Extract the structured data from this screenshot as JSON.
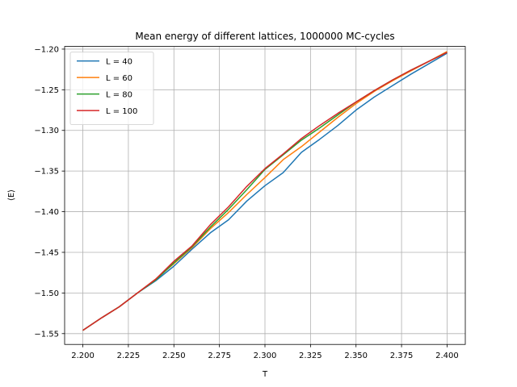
{
  "chart_data": {
    "type": "line",
    "title": "Mean energy of different lattices, 1000000 MC-cycles",
    "xlabel": "T",
    "ylabel": "⟨E⟩",
    "xlim": [
      2.19,
      2.41
    ],
    "ylim": [
      -1.5633,
      -1.1967
    ],
    "grid": true,
    "legend_position": "top-left",
    "xticks": [
      2.2,
      2.225,
      2.25,
      2.275,
      2.3,
      2.325,
      2.35,
      2.375,
      2.4
    ],
    "xtick_labels": [
      "2.200",
      "2.225",
      "2.250",
      "2.275",
      "2.300",
      "2.325",
      "2.350",
      "2.375",
      "2.400"
    ],
    "yticks": [
      -1.55,
      -1.5,
      -1.45,
      -1.4,
      -1.35,
      -1.3,
      -1.25,
      -1.2
    ],
    "ytick_labels": [
      "−1.55",
      "−1.50",
      "−1.45",
      "−1.40",
      "−1.35",
      "−1.30",
      "−1.25",
      "−1.20"
    ],
    "x": [
      2.2,
      2.21,
      2.22,
      2.23,
      2.24,
      2.25,
      2.26,
      2.27,
      2.28,
      2.29,
      2.3,
      2.31,
      2.32,
      2.33,
      2.34,
      2.35,
      2.36,
      2.37,
      2.38,
      2.39,
      2.4
    ],
    "series": [
      {
        "name": "L = 40",
        "color": "#1f77b4",
        "values": [
          -1.546,
          -1.531,
          -1.517,
          -1.5,
          -1.485,
          -1.467,
          -1.446,
          -1.426,
          -1.41,
          -1.387,
          -1.368,
          -1.352,
          -1.327,
          -1.311,
          -1.294,
          -1.275,
          -1.259,
          -1.245,
          -1.231,
          -1.218,
          -1.205
        ]
      },
      {
        "name": "L = 60",
        "color": "#ff7f0e",
        "values": [
          -1.546,
          -1.531,
          -1.517,
          -1.5,
          -1.483,
          -1.464,
          -1.444,
          -1.421,
          -1.401,
          -1.379,
          -1.358,
          -1.336,
          -1.32,
          -1.302,
          -1.284,
          -1.267,
          -1.252,
          -1.239,
          -1.227,
          -1.215,
          -1.203
        ]
      },
      {
        "name": "L = 80",
        "color": "#2ca02c",
        "values": [
          -1.546,
          -1.531,
          -1.517,
          -1.5,
          -1.484,
          -1.463,
          -1.443,
          -1.419,
          -1.397,
          -1.373,
          -1.348,
          -1.33,
          -1.312,
          -1.297,
          -1.281,
          -1.265,
          -1.251,
          -1.238,
          -1.226,
          -1.215,
          -1.204
        ]
      },
      {
        "name": "L = 100",
        "color": "#d62728",
        "values": [
          -1.546,
          -1.531,
          -1.517,
          -1.5,
          -1.483,
          -1.461,
          -1.442,
          -1.416,
          -1.394,
          -1.369,
          -1.347,
          -1.329,
          -1.31,
          -1.294,
          -1.279,
          -1.265,
          -1.251,
          -1.238,
          -1.226,
          -1.215,
          -1.204
        ]
      }
    ]
  }
}
